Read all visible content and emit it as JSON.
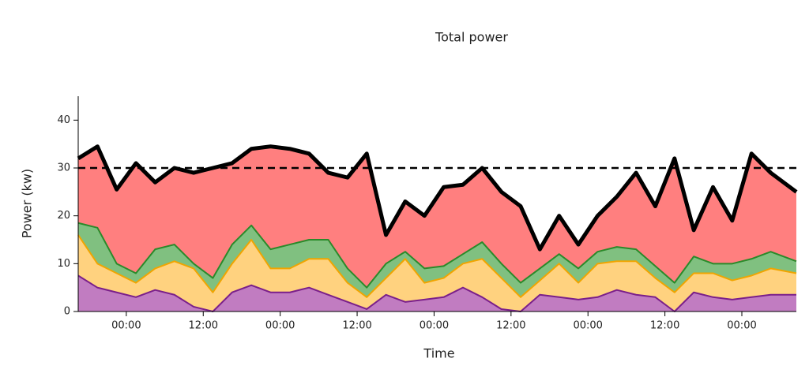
{
  "chart_data": {
    "type": "stacked_area",
    "title": "Total power",
    "xlabel": "Time",
    "ylabel": "Power (kw)",
    "x": [
      -7.5,
      -4.5,
      -1.5,
      1.5,
      4.5,
      7.5,
      10.5,
      13.5,
      16.5,
      19.5,
      22.5,
      25.5,
      28.5,
      31.5,
      34.5,
      37.5,
      40.5,
      43.5,
      46.5,
      49.5,
      52.5,
      55.5,
      58.5,
      61.5,
      64.5,
      67.5,
      70.5,
      73.5,
      76.5,
      79.5,
      82.5,
      85.5,
      88.5,
      91.5,
      94.5,
      97.5,
      100.5,
      104.5
    ],
    "xlim": [
      -7.5,
      104.5
    ],
    "xticks": [
      {
        "value": 0,
        "label": "00:00"
      },
      {
        "value": 12,
        "label": "12:00"
      },
      {
        "value": 24,
        "label": "00:00"
      },
      {
        "value": 36,
        "label": "12:00"
      },
      {
        "value": 48,
        "label": "00:00"
      },
      {
        "value": 60,
        "label": "12:00"
      },
      {
        "value": 72,
        "label": "00:00"
      },
      {
        "value": 84,
        "label": "12:00"
      },
      {
        "value": 96,
        "label": "00:00"
      }
    ],
    "ylim": [
      0,
      45
    ],
    "yticks": [
      0,
      10,
      20,
      30,
      40
    ],
    "threshold": 30,
    "top_line_color": "#000000",
    "series": [
      {
        "color": "#c17cc1",
        "line_color": "#7a1f8a",
        "values": [
          7.5,
          5,
          4,
          3,
          4.5,
          3.5,
          1,
          0,
          4,
          5.5,
          4,
          4,
          5,
          3.5,
          2,
          0.5,
          3.5,
          2,
          2.5,
          3,
          5,
          3,
          0.5,
          0,
          3.5,
          3,
          2.5,
          3,
          4.5,
          3.5,
          3,
          0,
          4,
          3,
          2.5,
          3,
          3.5,
          3.5
        ]
      },
      {
        "color": "#ffd27f",
        "line_color": "#f0a500",
        "values": [
          8.5,
          5,
          4,
          3,
          4.5,
          7,
          8,
          4,
          6,
          9.5,
          5,
          5,
          6,
          7.5,
          4,
          2.5,
          3.5,
          9,
          3.5,
          4,
          5,
          8,
          6.5,
          3,
          3,
          7,
          3.5,
          7,
          6,
          7,
          4,
          4,
          4,
          5,
          4,
          4.5,
          5.5,
          4.5
        ]
      },
      {
        "color": "#80c080",
        "line_color": "#2a8a2a",
        "values": [
          2.5,
          7.5,
          2,
          2,
          4,
          3.5,
          1,
          3,
          4,
          3,
          4,
          5,
          4,
          4,
          3,
          2,
          3,
          1.5,
          3,
          2.5,
          2,
          3.5,
          3,
          3,
          2.5,
          2,
          3,
          2.5,
          3,
          2.5,
          2.5,
          2,
          3.5,
          2,
          3.5,
          3.5,
          3.5,
          2.5
        ]
      },
      {
        "color": "#ff7f7f",
        "values": [
          13.5,
          17,
          15.5,
          23,
          14,
          16,
          19,
          23,
          17,
          16,
          21.5,
          20,
          18,
          14,
          19,
          28,
          6,
          10.5,
          11,
          16.5,
          14.5,
          15.5,
          15,
          16,
          4,
          8,
          5,
          7.5,
          10.5,
          16,
          12.5,
          26,
          5.5,
          16,
          9,
          22,
          16.5,
          14.5
        ]
      }
    ]
  }
}
